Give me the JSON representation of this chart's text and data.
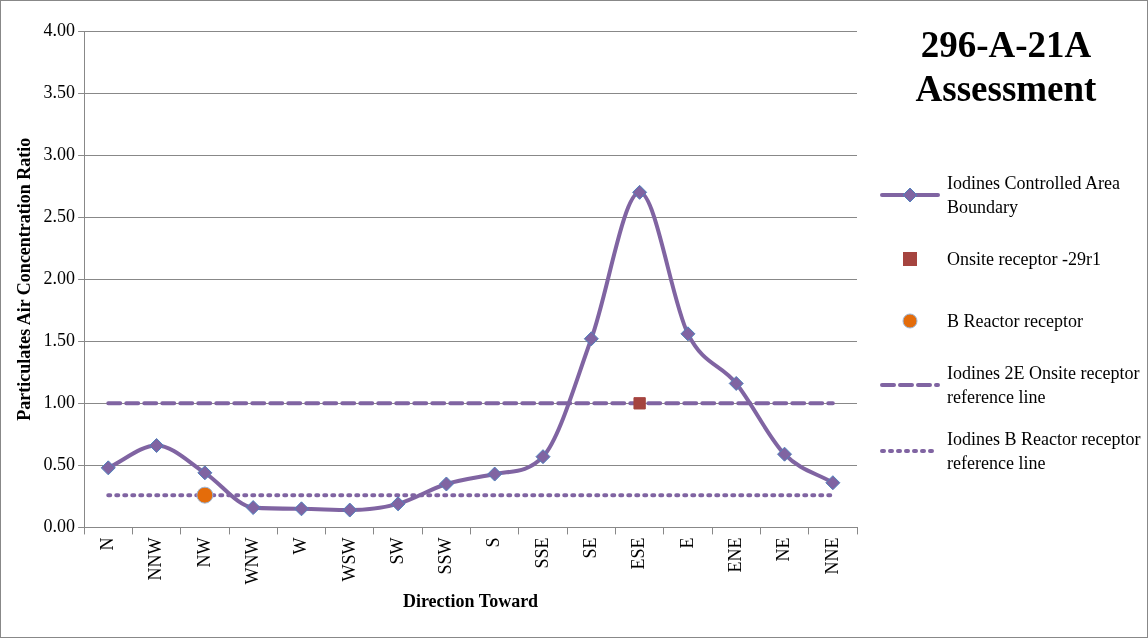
{
  "chart_data": {
    "type": "line",
    "title": "296-A-21A Assessment",
    "xlabel": "Direction Toward",
    "ylabel": "Particulates Air Concentration Ratio",
    "categories": [
      "N",
      "NNW",
      "NW",
      "WNW",
      "W",
      "WSW",
      "SW",
      "SSW",
      "S",
      "SSE",
      "SE",
      "ESE",
      "E",
      "ENE",
      "NE",
      "NNE"
    ],
    "series": [
      {
        "name": "Iodines Controlled Area Boundary",
        "color": "#8064a2",
        "marker": "diamond",
        "line_style": "solid",
        "values": [
          0.48,
          0.66,
          0.44,
          0.16,
          0.15,
          0.14,
          0.19,
          0.35,
          0.43,
          0.57,
          1.52,
          2.7,
          1.56,
          1.16,
          0.59,
          0.36
        ]
      },
      {
        "name": "Onsite receptor -29r1",
        "type": "scatter",
        "color": "#a5443f",
        "marker": "square",
        "x": [
          "ESE"
        ],
        "values": [
          1.0
        ]
      },
      {
        "name": "B Reactor receptor",
        "type": "scatter",
        "color": "#e46c0a",
        "marker": "circle",
        "x": [
          "NW"
        ],
        "values": [
          0.26
        ]
      },
      {
        "name": "Iodines 2E Onsite receptor reference line",
        "type": "line",
        "color": "#8064a2",
        "marker": "none",
        "line_style": "dashed",
        "values": [
          1.0,
          1.0,
          1.0,
          1.0,
          1.0,
          1.0,
          1.0,
          1.0,
          1.0,
          1.0,
          1.0,
          1.0,
          1.0,
          1.0,
          1.0,
          1.0
        ]
      },
      {
        "name": "Iodines B Reactor receptor reference line",
        "type": "line",
        "color": "#8064a2",
        "marker": "none",
        "line_style": "dotted",
        "values": [
          0.26,
          0.26,
          0.26,
          0.26,
          0.26,
          0.26,
          0.26,
          0.26,
          0.26,
          0.26,
          0.26,
          0.26,
          0.26,
          0.26,
          0.26,
          0.26
        ]
      }
    ],
    "ylim": [
      0,
      4
    ],
    "yticks": [
      {
        "value": 0,
        "label": "0.00"
      },
      {
        "value": 0.5,
        "label": "0.50"
      },
      {
        "value": 1,
        "label": "1.00"
      },
      {
        "value": 1.5,
        "label": "1.50"
      },
      {
        "value": 2,
        "label": "2.00"
      },
      {
        "value": 2.5,
        "label": "2.50"
      },
      {
        "value": 3,
        "label": "3.00"
      },
      {
        "value": 3.5,
        "label": "3.50"
      },
      {
        "value": 4,
        "label": "4.00"
      }
    ],
    "grid": "y",
    "legend": "right"
  }
}
